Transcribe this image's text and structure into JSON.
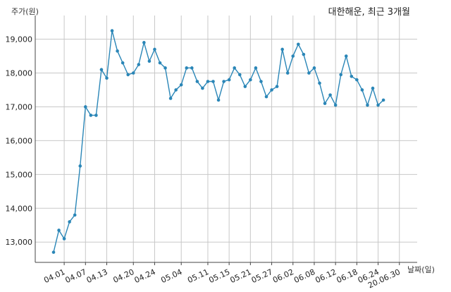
{
  "chart_data": {
    "type": "line",
    "title": "대한해운, 최근 3개월",
    "ylabel": "주가(원)",
    "xlabel": "날짜(일)",
    "ylim": [
      12400,
      19700
    ],
    "yticks": [
      13000,
      14000,
      15000,
      16000,
      17000,
      18000,
      19000
    ],
    "ytick_labels": [
      "13,000",
      "14,000",
      "15,000",
      "16,000",
      "17,000",
      "18,000",
      "19,000"
    ],
    "grid": true,
    "xtick_labels": [
      "04.01",
      "04.07",
      "04.13",
      "04.20",
      "04.24",
      "05.04",
      "05.11",
      "05.15",
      "05.21",
      "05.27",
      "06.02",
      "06.08",
      "06.12",
      "06.18",
      "06.24",
      "20.06.30"
    ],
    "xtick_indices": [
      2,
      6,
      10,
      15,
      19,
      24,
      29,
      33,
      37,
      41,
      45,
      49,
      53,
      57,
      61,
      65
    ],
    "series": [
      {
        "values": [
          12700,
          13350,
          13100,
          13600,
          13800,
          15250,
          17000,
          16750,
          16750,
          18100,
          17850,
          19250,
          18650,
          18300,
          17950,
          18000,
          18250,
          18900,
          18350,
          18700,
          18300,
          18150,
          17250,
          17500,
          17650,
          18150,
          18150,
          17750,
          17550,
          17750,
          17750,
          17200,
          17750,
          17800,
          18150,
          17950,
          17600,
          17800,
          18150,
          17750,
          17300,
          17500,
          17600,
          18700,
          18000,
          18500,
          18850,
          18550,
          18000,
          18150,
          17700,
          17100,
          17350,
          17050,
          17950,
          18500,
          17900,
          17800,
          17500,
          17050,
          17550,
          17050,
          17200
        ]
      }
    ]
  }
}
